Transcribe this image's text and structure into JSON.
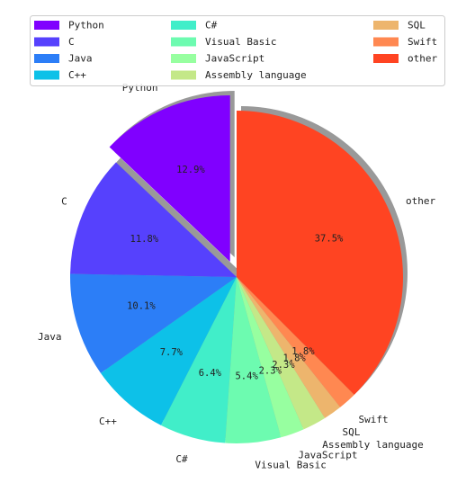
{
  "chart_data": {
    "type": "pie",
    "title": "",
    "categories": [
      "Python",
      "C",
      "Java",
      "C++",
      "C#",
      "Visual Basic",
      "JavaScript",
      "Assembly language",
      "SQL",
      "Swift",
      "other"
    ],
    "values": [
      12.9,
      11.8,
      10.1,
      7.7,
      6.4,
      5.4,
      2.3,
      2.3,
      1.8,
      1.8,
      37.5
    ],
    "value_labels": [
      "12.9%",
      "11.8%",
      "10.1%",
      "7.7%",
      "6.4%",
      "5.4%",
      "2.3%",
      "2.3%",
      "1.8%",
      "1.8%",
      "37.5%"
    ],
    "colors": [
      "#8000ff",
      "#5641fd",
      "#2c7ef7",
      "#0dc1e8",
      "#41eec9",
      "#6dfbb0",
      "#97ffa0",
      "#c4e888",
      "#edb56d",
      "#ff8851",
      "#ff4422"
    ],
    "explode": [
      0.1,
      0,
      0,
      0,
      0,
      0,
      0,
      0,
      0,
      0,
      0
    ],
    "start_angle_deg": 90,
    "direction": "counterclockwise",
    "shadow": true,
    "legend_position": "top",
    "legend_columns": 3
  }
}
